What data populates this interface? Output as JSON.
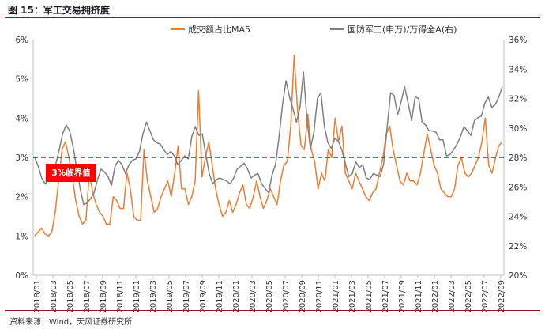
{
  "figure_title": "图 15：军工交易拥挤度",
  "source_note": "资料来源：Wind，天风证券研究所",
  "colors": {
    "series1": "#ed7d31",
    "series2": "#7f7f7f",
    "threshold": "#e00000",
    "badge_bg": "#ff0000",
    "badge_text": "#ffffff",
    "rule": "#8b1a1a"
  },
  "chart_data": {
    "type": "line",
    "title": "军工交易拥挤度",
    "x_tick_labels": [
      "2018/01",
      "2018/03",
      "2018/05",
      "2018/07",
      "2018/09",
      "2018/11",
      "2019/01",
      "2019/03",
      "2019/05",
      "2019/07",
      "2019/09",
      "2019/11",
      "2020/01",
      "2020/03",
      "2020/05",
      "2020/07",
      "2020/09",
      "2020/11",
      "2021/01",
      "2021/03",
      "2021/05",
      "2021/07",
      "2021/09",
      "2021/11",
      "2022/01",
      "2022/03",
      "2022/05",
      "2022/07",
      "2022/09"
    ],
    "left_axis": {
      "ticks": [
        "0%",
        "1%",
        "2%",
        "3%",
        "4%",
        "5%",
        "6%"
      ],
      "ylim": [
        0,
        6
      ]
    },
    "right_axis": {
      "ticks": [
        "20%",
        "22%",
        "24%",
        "26%",
        "28%",
        "30%",
        "32%",
        "34%",
        "36%"
      ],
      "ylim": [
        20,
        36
      ]
    },
    "legend": [
      "成交额占比MA5",
      "国防军工(申万)/万得全A(右)"
    ],
    "threshold": {
      "value": 3,
      "label": "3%临界值"
    },
    "series": [
      {
        "name": "成交额占比MA5",
        "axis": "left",
        "color": "#ed7d31",
        "values": [
          1.0,
          1.1,
          1.2,
          1.05,
          1.0,
          1.1,
          1.6,
          2.4,
          3.2,
          3.4,
          3.0,
          2.5,
          1.9,
          1.5,
          1.3,
          1.4,
          2.6,
          2.1,
          1.8,
          1.6,
          1.5,
          1.3,
          1.3,
          2.0,
          1.9,
          1.7,
          1.7,
          2.6,
          2.2,
          1.5,
          1.4,
          1.4,
          3.2,
          2.4,
          2.0,
          1.6,
          1.7,
          2.0,
          2.2,
          2.4,
          2.0,
          2.6,
          3.3,
          2.2,
          2.2,
          1.8,
          2.0,
          2.4,
          4.7,
          2.5,
          3.0,
          3.4,
          2.8,
          2.2,
          1.8,
          1.5,
          1.6,
          1.9,
          1.6,
          1.8,
          2.1,
          2.3,
          1.8,
          1.7,
          2.0,
          2.4,
          2.0,
          1.7,
          1.9,
          2.2,
          2.0,
          1.8,
          2.4,
          2.8,
          2.9,
          3.8,
          5.6,
          4.2,
          3.3,
          3.2,
          4.1,
          3.2,
          2.9,
          2.2,
          2.6,
          2.4,
          3.2,
          3.0,
          4.0,
          3.4,
          3.8,
          2.6,
          2.4,
          2.2,
          2.6,
          2.4,
          2.2,
          2.0,
          1.9,
          2.1,
          2.2,
          2.6,
          3.0,
          3.6,
          3.8,
          3.2,
          2.8,
          2.4,
          2.3,
          2.6,
          2.4,
          2.4,
          2.3,
          2.6,
          3.1,
          3.6,
          3.2,
          2.8,
          2.6,
          2.2,
          2.1,
          2.0,
          2.0,
          2.2,
          2.8,
          3.0,
          2.6,
          2.5,
          2.6,
          2.8,
          3.0,
          3.4,
          4.0,
          2.8,
          2.6,
          3.0,
          3.3,
          3.4
        ]
      },
      {
        "name": "国防军工(申万)/万得全A(右)",
        "axis": "right",
        "color": "#7f7f7f",
        "values": [
          28.0,
          27.4,
          26.6,
          26.2,
          26.5,
          26.8,
          27.5,
          28.5,
          29.6,
          30.2,
          29.8,
          28.7,
          27.3,
          25.9,
          24.8,
          24.9,
          25.2,
          25.6,
          26.5,
          27.2,
          27.0,
          26.7,
          26.1,
          27.4,
          27.8,
          27.5,
          26.9,
          27.5,
          27.8,
          27.9,
          28.4,
          29.6,
          30.4,
          29.8,
          29.2,
          29.0,
          28.9,
          28.5,
          28.2,
          28.4,
          28.1,
          27.5,
          27.8,
          28.1,
          27.9,
          29.4,
          30.1,
          29.5,
          29.6,
          28.2,
          26.9,
          26.2,
          26.5,
          26.6,
          26.5,
          26.4,
          26.2,
          26.6,
          27.2,
          27.4,
          27.6,
          27.2,
          26.6,
          26.8,
          26.9,
          26.2,
          25.9,
          25.6,
          26.8,
          27.5,
          29.4,
          31.6,
          33.2,
          32.1,
          31.3,
          30.4,
          31.4,
          33.8,
          30.6,
          28.6,
          29.7,
          32.0,
          32.4,
          30.1,
          29.0,
          28.6,
          29.3,
          29.1,
          28.5,
          27.6,
          26.7,
          26.9,
          27.7,
          27.3,
          27.5,
          26.6,
          26.5,
          26.9,
          26.8,
          26.7,
          27.6,
          30.1,
          32.4,
          32.2,
          30.9,
          31.8,
          32.8,
          31.7,
          30.5,
          32.1,
          32.0,
          30.4,
          30.2,
          29.8,
          29.8,
          29.7,
          29.2,
          29.2,
          28.1,
          28.2,
          28.5,
          28.9,
          29.4,
          30.1,
          29.8,
          29.5,
          30.5,
          30.7,
          30.8,
          31.7,
          32.1,
          31.4,
          31.6,
          32.1,
          32.8
        ]
      }
    ]
  }
}
